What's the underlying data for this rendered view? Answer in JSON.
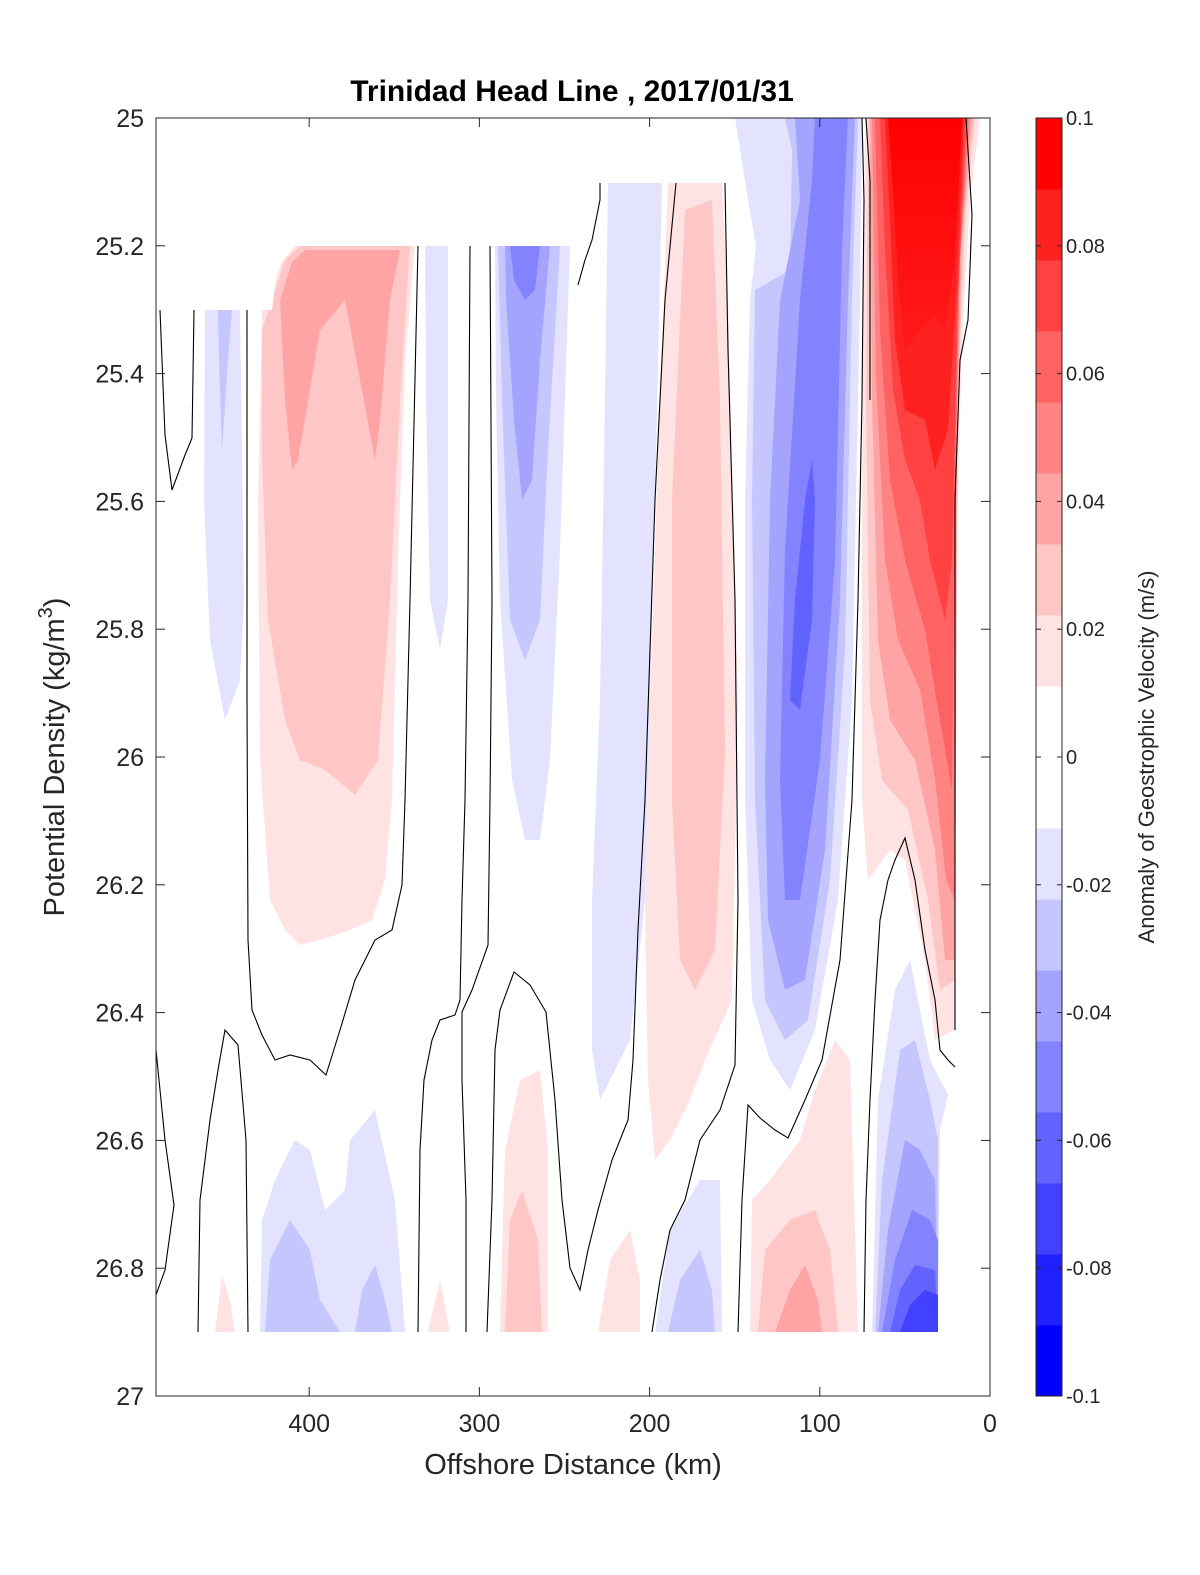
{
  "chart_data": {
    "type": "heatmap",
    "title": "Trinidad Head Line , 2017/01/31",
    "xlabel": "Offshore Distance (km)",
    "ylabel": "Potential Density (kg/m",
    "ylabel_sup": "3",
    "ylabel_close": ")",
    "colorbar_label": "Anomaly of Geostrophic Velocity (m/s)",
    "xlim": [
      490,
      0
    ],
    "ylim": [
      25,
      27
    ],
    "x_reversed": true,
    "y_reversed": true,
    "x_ticks": [
      400,
      300,
      200,
      100,
      0
    ],
    "x_tick_labels": [
      "400",
      "300",
      "200",
      "100",
      "0"
    ],
    "y_ticks": [
      25,
      25.2,
      25.4,
      25.6,
      25.8,
      26,
      26.2,
      26.4,
      26.6,
      26.8,
      27
    ],
    "y_tick_labels": [
      "25",
      "25.2",
      "25.4",
      "25.6",
      "25.8",
      "26",
      "26.2",
      "26.4",
      "26.6",
      "26.8",
      "27"
    ],
    "colorbar_range": [
      -0.1,
      0.1
    ],
    "colorbar_tick_values": [
      0.1,
      0.08,
      0.06,
      0.04,
      0.02,
      0,
      -0.02,
      -0.04,
      -0.06,
      -0.08,
      -0.1
    ],
    "colorbar_tick_labels": [
      "0.1",
      "0.08",
      "0.06",
      "0.04",
      "0.02",
      "0",
      "-0.02",
      "-0.04",
      "-0.06",
      "-0.08",
      "-0.1"
    ],
    "colormap": [
      "#0000ff",
      "#2020ff",
      "#4141ff",
      "#6262ff",
      "#8383ff",
      "#a4a4ff",
      "#c6c6ff",
      "#e3e3ff",
      "#ffffff",
      "#ffffff",
      "#ffe3e3",
      "#ffc6c6",
      "#ffa4a4",
      "#ff8383",
      "#ff6262",
      "#ff4141",
      "#ff2020",
      "#ff0000"
    ],
    "zero_contour_color": "#000000",
    "grid": false,
    "features": [
      {
        "kind": "positive",
        "x_range": [
          430,
          345
        ],
        "density_range": [
          25.2,
          26.25
        ],
        "peak": 0.04
      },
      {
        "kind": "negative",
        "x_range": [
          285,
          255
        ],
        "density_range": [
          25.2,
          26.1
        ],
        "peak": -0.04
      },
      {
        "kind": "positive",
        "x_range": [
          200,
          150
        ],
        "density_range": [
          25.1,
          26.5
        ],
        "peak": 0.03
      },
      {
        "kind": "negative",
        "x_range": [
          140,
          70
        ],
        "density_range": [
          25.0,
          26.5
        ],
        "peak": -0.06
      },
      {
        "kind": "positive",
        "x_range": [
          70,
          15
        ],
        "density_range": [
          25.0,
          26.4
        ],
        "peak": 0.1
      },
      {
        "kind": "negative",
        "x_range": [
          70,
          30
        ],
        "density_range": [
          26.4,
          26.9
        ],
        "peak": -0.08
      },
      {
        "kind": "positive",
        "x_range": [
          130,
          70
        ],
        "density_range": [
          26.55,
          26.9
        ],
        "peak": 0.04
      },
      {
        "kind": "negative",
        "x_range": [
          420,
          350
        ],
        "density_range": [
          26.5,
          26.9
        ],
        "peak": -0.03
      },
      {
        "kind": "positive",
        "x_range": [
          285,
          265
        ],
        "density_range": [
          26.5,
          26.9
        ],
        "peak": 0.03
      },
      {
        "kind": "negative",
        "x_range": [
          190,
          150
        ],
        "density_range": [
          26.65,
          26.9
        ],
        "peak": -0.04
      }
    ]
  }
}
